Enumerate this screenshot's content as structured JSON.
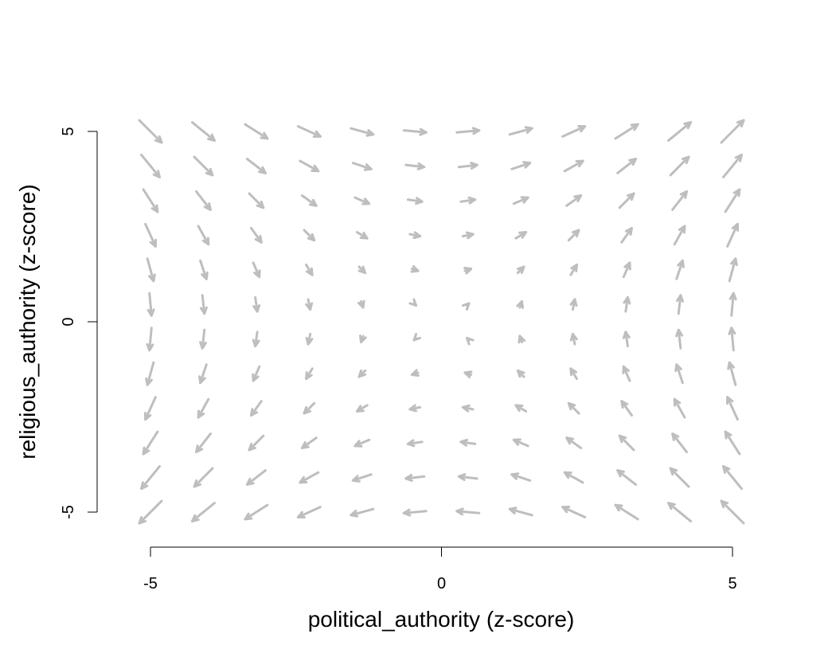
{
  "chart_data": {
    "type": "vector_field",
    "xlabel": "political_authority (z-score)",
    "ylabel": "religious_authority (z-score)",
    "xlim": [
      -5,
      5
    ],
    "ylim": [
      -5,
      5
    ],
    "xticks": [
      -5,
      0,
      5
    ],
    "yticks": [
      -5,
      0,
      5
    ],
    "grid": [
      -5,
      -4.091,
      -3.182,
      -2.273,
      -1.364,
      -0.455,
      0.455,
      1.364,
      2.273,
      3.182,
      4.091,
      5
    ],
    "arrow_color": "#bebebe",
    "vector_field": "dx = y, dy = x (scaled)",
    "grid_lines": false
  }
}
